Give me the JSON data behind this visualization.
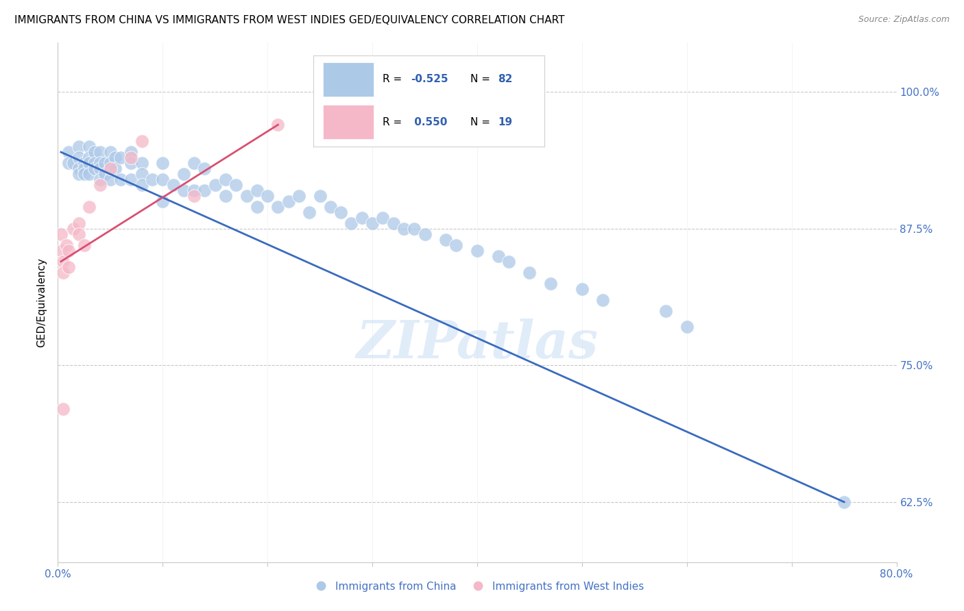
{
  "title": "IMMIGRANTS FROM CHINA VS IMMIGRANTS FROM WEST INDIES GED/EQUIVALENCY CORRELATION CHART",
  "source": "Source: ZipAtlas.com",
  "ylabel": "GED/Equivalency",
  "ytick_labels": [
    "62.5%",
    "75.0%",
    "87.5%",
    "100.0%"
  ],
  "ytick_values": [
    0.625,
    0.75,
    0.875,
    1.0
  ],
  "xlim": [
    0.0,
    0.8
  ],
  "ylim": [
    0.57,
    1.045
  ],
  "legend1_label": "Immigrants from China",
  "legend2_label": "Immigrants from West Indies",
  "R_china": -0.525,
  "N_china": 82,
  "R_wi": 0.55,
  "N_wi": 19,
  "china_color": "#adc9e8",
  "wi_color": "#f5b8c8",
  "china_line_color": "#3a6bbf",
  "wi_line_color": "#d94f72",
  "watermark": "ZIPatlas",
  "china_x": [
    0.01,
    0.01,
    0.015,
    0.02,
    0.02,
    0.02,
    0.02,
    0.025,
    0.025,
    0.025,
    0.03,
    0.03,
    0.03,
    0.03,
    0.035,
    0.035,
    0.035,
    0.04,
    0.04,
    0.04,
    0.04,
    0.045,
    0.045,
    0.05,
    0.05,
    0.05,
    0.055,
    0.055,
    0.06,
    0.06,
    0.07,
    0.07,
    0.07,
    0.08,
    0.08,
    0.08,
    0.09,
    0.1,
    0.1,
    0.1,
    0.11,
    0.12,
    0.12,
    0.13,
    0.13,
    0.14,
    0.14,
    0.15,
    0.16,
    0.16,
    0.17,
    0.18,
    0.19,
    0.19,
    0.2,
    0.21,
    0.22,
    0.23,
    0.24,
    0.25,
    0.26,
    0.27,
    0.28,
    0.29,
    0.3,
    0.31,
    0.32,
    0.33,
    0.34,
    0.35,
    0.37,
    0.38,
    0.4,
    0.42,
    0.43,
    0.45,
    0.47,
    0.5,
    0.52,
    0.58,
    0.6,
    0.75
  ],
  "china_y": [
    0.945,
    0.935,
    0.935,
    0.95,
    0.94,
    0.93,
    0.925,
    0.935,
    0.93,
    0.925,
    0.95,
    0.94,
    0.935,
    0.925,
    0.945,
    0.935,
    0.93,
    0.945,
    0.935,
    0.93,
    0.92,
    0.935,
    0.925,
    0.945,
    0.935,
    0.92,
    0.94,
    0.93,
    0.94,
    0.92,
    0.945,
    0.935,
    0.92,
    0.935,
    0.925,
    0.915,
    0.92,
    0.935,
    0.92,
    0.9,
    0.915,
    0.925,
    0.91,
    0.935,
    0.91,
    0.93,
    0.91,
    0.915,
    0.92,
    0.905,
    0.915,
    0.905,
    0.91,
    0.895,
    0.905,
    0.895,
    0.9,
    0.905,
    0.89,
    0.905,
    0.895,
    0.89,
    0.88,
    0.885,
    0.88,
    0.885,
    0.88,
    0.875,
    0.875,
    0.87,
    0.865,
    0.86,
    0.855,
    0.85,
    0.845,
    0.835,
    0.825,
    0.82,
    0.81,
    0.8,
    0.785,
    0.625
  ],
  "wi_x": [
    0.003,
    0.004,
    0.005,
    0.005,
    0.005,
    0.008,
    0.01,
    0.01,
    0.015,
    0.02,
    0.02,
    0.025,
    0.03,
    0.04,
    0.05,
    0.07,
    0.08,
    0.13,
    0.21
  ],
  "wi_y": [
    0.87,
    0.855,
    0.845,
    0.835,
    0.71,
    0.86,
    0.855,
    0.84,
    0.875,
    0.88,
    0.87,
    0.86,
    0.895,
    0.915,
    0.93,
    0.94,
    0.955,
    0.905,
    0.97
  ],
  "china_line_x": [
    0.003,
    0.75
  ],
  "china_line_y": [
    0.945,
    0.625
  ],
  "wi_line_x": [
    0.003,
    0.21
  ],
  "wi_line_y": [
    0.845,
    0.97
  ]
}
